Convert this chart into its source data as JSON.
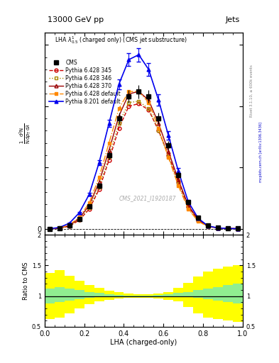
{
  "title_top": "13000 GeV pp",
  "title_right": "Jets",
  "plot_title": "LHA $\\lambda^{1}_{0.5}$ (charged only) (CMS jet substructure)",
  "xlabel": "LHA (charged-only)",
  "watermark": "CMS_2021_I1920187",
  "rivet_label": "Rivet 3.1.10, ≥ 600k events",
  "mcplots_label": "mcplots.cern.ch [arXiv:1306.3436]",
  "x_bins": [
    0.0,
    0.05,
    0.1,
    0.15,
    0.2,
    0.25,
    0.3,
    0.35,
    0.4,
    0.45,
    0.5,
    0.55,
    0.6,
    0.65,
    0.7,
    0.75,
    0.8,
    0.85,
    0.9,
    0.95,
    1.0
  ],
  "cms_y": [
    0.0,
    0.5,
    2.5,
    8.0,
    18.0,
    35.0,
    60.0,
    90.0,
    108.0,
    112.0,
    108.0,
    90.0,
    68.0,
    44.0,
    22.0,
    9.0,
    2.5,
    0.8,
    0.2,
    0.05
  ],
  "cms_yerr": [
    0.0,
    0.2,
    0.5,
    1.0,
    1.5,
    2.5,
    3.5,
    4.5,
    5.0,
    5.5,
    5.0,
    4.5,
    3.5,
    2.5,
    1.5,
    1.0,
    0.5,
    0.2,
    0.1,
    0.03
  ],
  "py6_345_y": [
    0.0,
    0.4,
    2.0,
    7.0,
    16.0,
    32.0,
    56.0,
    82.0,
    100.0,
    102.0,
    97.0,
    80.0,
    60.0,
    38.0,
    18.0,
    7.0,
    2.0,
    0.6,
    0.2,
    0.04
  ],
  "py6_346_y": [
    0.0,
    0.4,
    2.2,
    7.5,
    17.0,
    34.0,
    59.0,
    86.0,
    103.0,
    104.0,
    98.0,
    80.0,
    59.0,
    37.0,
    17.0,
    6.5,
    1.8,
    0.5,
    0.15,
    0.03
  ],
  "py6_370_y": [
    0.0,
    0.5,
    2.5,
    8.5,
    19.0,
    38.0,
    64.0,
    92.0,
    110.0,
    112.0,
    105.0,
    86.0,
    63.0,
    40.0,
    19.0,
    7.5,
    2.0,
    0.6,
    0.18,
    0.03
  ],
  "py6_def_y": [
    0.0,
    0.6,
    3.0,
    9.5,
    21.0,
    42.0,
    70.0,
    98.0,
    112.0,
    112.0,
    103.0,
    82.0,
    58.0,
    35.0,
    16.0,
    6.0,
    1.6,
    0.5,
    0.15,
    0.03
  ],
  "py8_def_y": [
    0.0,
    1.0,
    4.5,
    13.0,
    28.0,
    54.0,
    86.0,
    118.0,
    138.0,
    142.0,
    130.0,
    105.0,
    76.0,
    47.0,
    22.0,
    8.5,
    2.2,
    0.6,
    0.18,
    0.03
  ],
  "py8_def_yerr": [
    0.0,
    0.15,
    0.4,
    0.8,
    1.2,
    2.0,
    3.0,
    4.0,
    5.0,
    5.5,
    5.0,
    4.5,
    3.5,
    2.5,
    1.5,
    0.8,
    0.3,
    0.12,
    0.05,
    0.01
  ],
  "ratio_green_lo": [
    0.88,
    0.9,
    0.93,
    0.95,
    0.97,
    0.98,
    0.99,
    0.995,
    1.0,
    1.0,
    1.0,
    1.0,
    0.995,
    0.99,
    0.98,
    0.97,
    0.95,
    0.93,
    0.9,
    0.88
  ],
  "ratio_green_hi": [
    1.12,
    1.15,
    1.12,
    1.1,
    1.07,
    1.05,
    1.03,
    1.02,
    1.01,
    1.01,
    1.01,
    1.02,
    1.03,
    1.05,
    1.07,
    1.1,
    1.12,
    1.15,
    1.18,
    1.2
  ],
  "ratio_yellow_lo": [
    0.62,
    0.65,
    0.72,
    0.8,
    0.87,
    0.91,
    0.94,
    0.96,
    0.97,
    0.97,
    0.97,
    0.96,
    0.94,
    0.91,
    0.82,
    0.72,
    0.65,
    0.62,
    0.6,
    0.58
  ],
  "ratio_yellow_hi": [
    1.38,
    1.42,
    1.33,
    1.25,
    1.18,
    1.13,
    1.09,
    1.06,
    1.04,
    1.03,
    1.03,
    1.04,
    1.07,
    1.13,
    1.22,
    1.32,
    1.4,
    1.45,
    1.48,
    1.5
  ],
  "color_cms": "#000000",
  "color_py6_345": "#cc0000",
  "color_py6_346": "#aa8800",
  "color_py6_370": "#990000",
  "color_py6_def": "#ff8800",
  "color_py8_def": "#0000ee",
  "xlim": [
    0.0,
    1.0
  ],
  "ylim_main": [
    -5,
    160
  ],
  "ylim_ratio": [
    0.5,
    2.0
  ],
  "background_color": "#ffffff"
}
